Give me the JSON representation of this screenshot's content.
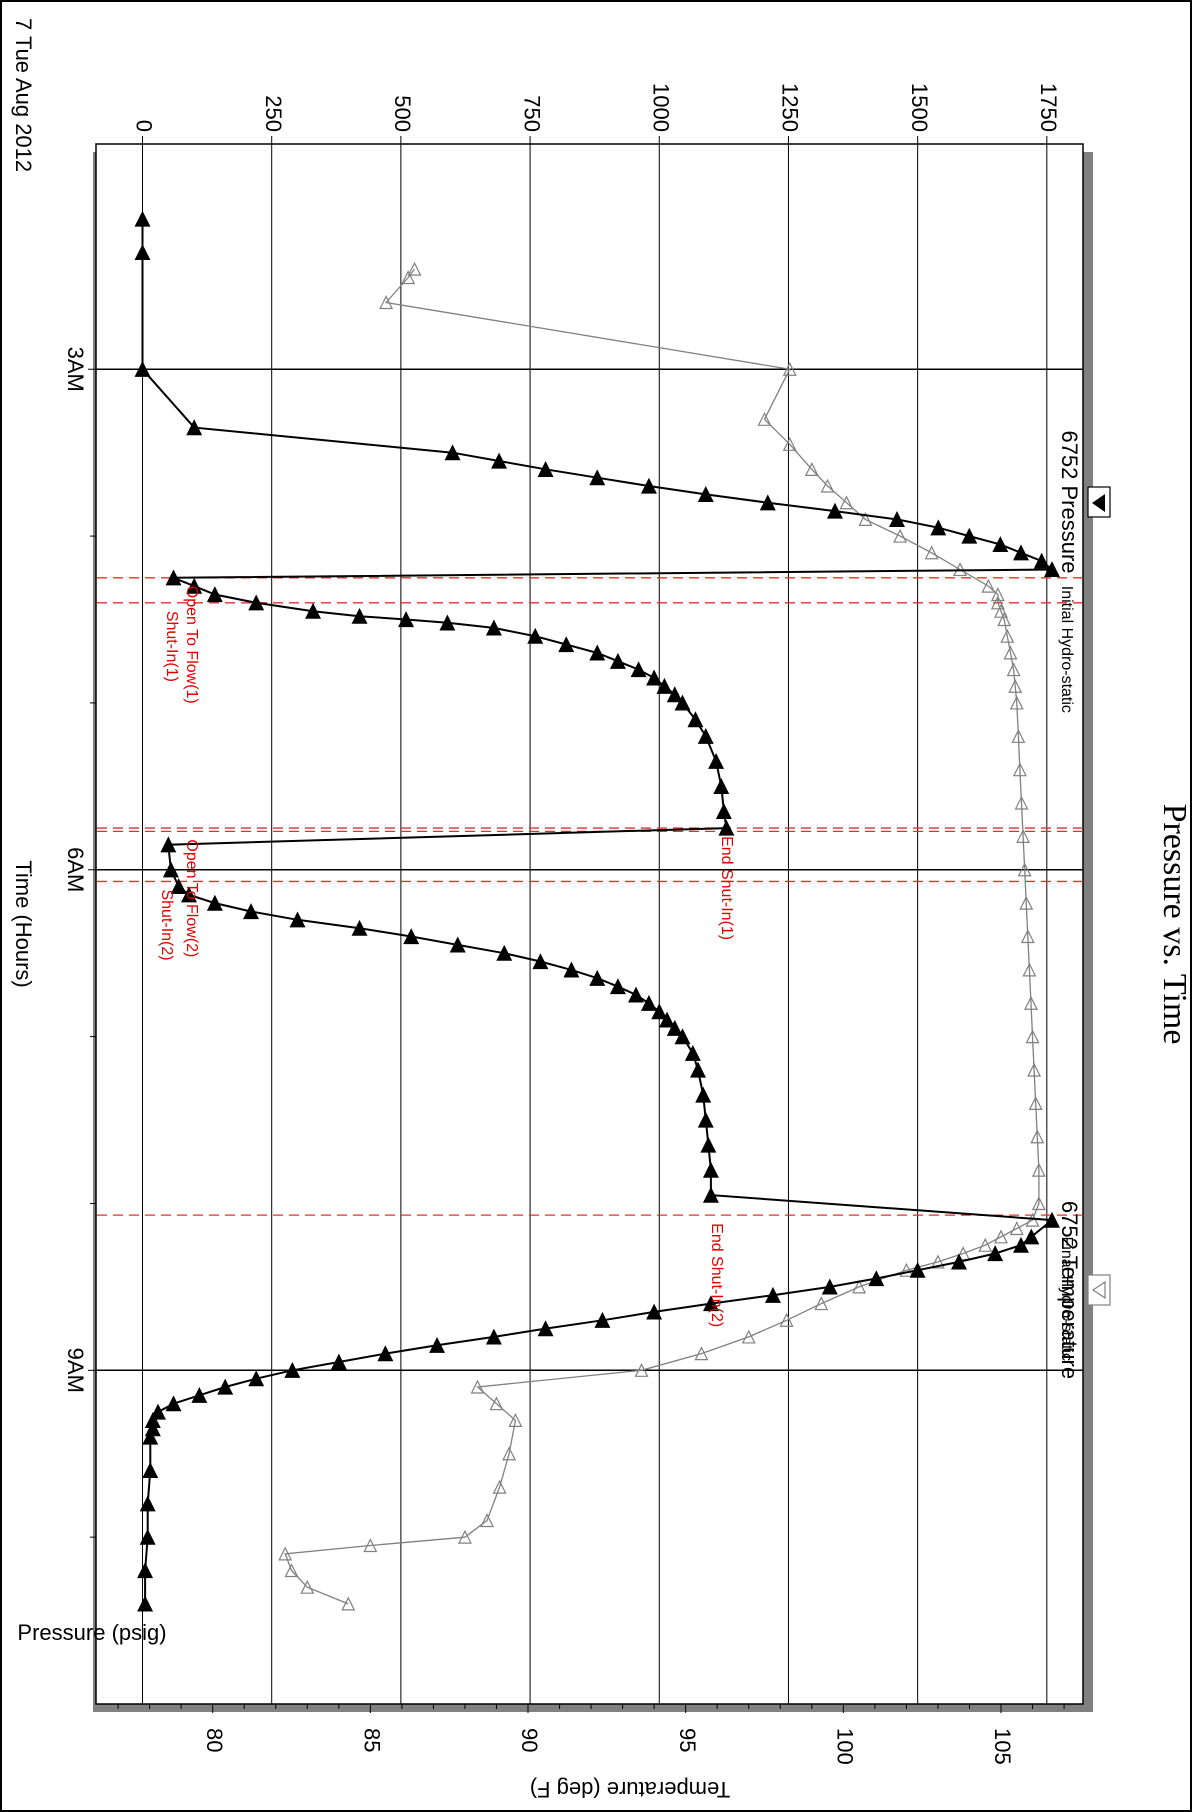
{
  "chart_data": {
    "type": "line",
    "title": "Pressure vs. Time",
    "date_label": "7 Tue Aug 2012",
    "x_axis": {
      "label": "Time (Hours)",
      "range": [
        1.65,
        11.0
      ],
      "major_ticks": [
        3,
        6,
        9
      ],
      "major_tick_labels": [
        "3AM",
        "6AM",
        "9AM"
      ],
      "minor_ticks": [
        4,
        5,
        7,
        8,
        10
      ]
    },
    "y_axis_left": {
      "label": "Pressure (psig)",
      "range": [
        -90,
        1820
      ],
      "ticks": [
        0,
        250,
        500,
        750,
        1000,
        1250,
        1500,
        1750
      ],
      "tick_labels": [
        "0",
        "250",
        "500",
        "750",
        "1000",
        "1250",
        "1500",
        "1750"
      ]
    },
    "y_axis_right": {
      "label": "Temperature (deg F)",
      "range": [
        76.3,
        107.6
      ],
      "ticks": [
        80,
        85,
        90,
        95,
        100,
        105
      ],
      "tick_labels": [
        "80",
        "85",
        "90",
        "95",
        "100",
        "105"
      ]
    },
    "grid": true,
    "legend_position": "top-right",
    "series": [
      {
        "name": "6752 Pressure",
        "axis": "left",
        "color": "#000000",
        "marker": "filled-triangle",
        "x": [
          2.1,
          2.3,
          3.0,
          3.35,
          3.5,
          3.55,
          3.6,
          3.65,
          3.7,
          3.75,
          3.8,
          3.85,
          3.9,
          3.95,
          4.0,
          4.05,
          4.1,
          4.15,
          4.2,
          4.25,
          4.3,
          4.35,
          4.4,
          4.45,
          4.48,
          4.5,
          4.52,
          4.55,
          4.6,
          4.65,
          4.7,
          4.75,
          4.8,
          4.85,
          4.9,
          4.95,
          5.0,
          5.1,
          5.2,
          5.35,
          5.5,
          5.65,
          5.75,
          5.85,
          6.0,
          6.1,
          6.15,
          6.2,
          6.25,
          6.3,
          6.35,
          6.4,
          6.45,
          6.5,
          6.55,
          6.6,
          6.65,
          6.7,
          6.75,
          6.8,
          6.85,
          6.9,
          6.95,
          7.0,
          7.1,
          7.2,
          7.35,
          7.5,
          7.65,
          7.8,
          7.95,
          8.1,
          8.2,
          8.25,
          8.3,
          8.35,
          8.4,
          8.45,
          8.5,
          8.55,
          8.6,
          8.65,
          8.7,
          8.75,
          8.8,
          8.85,
          8.9,
          8.95,
          9.0,
          9.05,
          9.1,
          9.15,
          9.2,
          9.25,
          9.3,
          9.35,
          9.4,
          9.6,
          9.8,
          10.0,
          10.2,
          10.4
        ],
        "y": [
          0,
          0,
          0,
          100,
          600,
          690,
          780,
          880,
          980,
          1090,
          1210,
          1340,
          1460,
          1540,
          1600,
          1660,
          1700,
          1740,
          1760,
          60,
          100,
          140,
          220,
          330,
          420,
          510,
          590,
          680,
          760,
          820,
          880,
          920,
          960,
          990,
          1010,
          1030,
          1045,
          1070,
          1090,
          1110,
          1120,
          1125,
          1130,
          50,
          55,
          70,
          90,
          140,
          210,
          300,
          420,
          520,
          610,
          700,
          770,
          830,
          880,
          920,
          955,
          980,
          1000,
          1015,
          1030,
          1045,
          1065,
          1075,
          1085,
          1090,
          1095,
          1100,
          1100,
          1760,
          1720,
          1700,
          1650,
          1580,
          1500,
          1420,
          1330,
          1220,
          1100,
          990,
          890,
          780,
          680,
          570,
          470,
          380,
          290,
          220,
          160,
          110,
          60,
          30,
          20,
          20,
          15,
          15,
          10,
          10,
          5,
          5
        ]
      },
      {
        "name": "6752 Temperature",
        "axis": "right",
        "color": "#808080",
        "marker": "open-triangle",
        "x": [
          2.4,
          2.45,
          2.6,
          3.0,
          3.3,
          3.45,
          3.6,
          3.7,
          3.8,
          3.9,
          4.0,
          4.1,
          4.2,
          4.3,
          4.35,
          4.4,
          4.45,
          4.5,
          4.6,
          4.7,
          4.8,
          4.9,
          5.0,
          5.2,
          5.4,
          5.6,
          5.8,
          6.0,
          6.2,
          6.4,
          6.6,
          6.8,
          7.0,
          7.2,
          7.4,
          7.6,
          7.8,
          8.0,
          8.1,
          8.15,
          8.2,
          8.25,
          8.3,
          8.35,
          8.4,
          8.5,
          8.6,
          8.7,
          8.8,
          8.9,
          9.0,
          9.1,
          9.2,
          9.3,
          9.5,
          9.7,
          9.9,
          10.0,
          10.05,
          10.1,
          10.2,
          10.3,
          10.4
        ],
        "y": [
          86.4,
          86.2,
          85.5,
          98.3,
          97.5,
          98.3,
          99.0,
          99.5,
          100.1,
          100.7,
          101.8,
          102.8,
          103.7,
          104.6,
          104.9,
          104.9,
          105.0,
          105.1,
          105.2,
          105.3,
          105.4,
          105.45,
          105.5,
          105.55,
          105.6,
          105.65,
          105.7,
          105.75,
          105.8,
          105.85,
          105.9,
          105.95,
          106.0,
          106.05,
          106.1,
          106.15,
          106.2,
          106.2,
          106.0,
          105.5,
          105.0,
          104.5,
          103.8,
          103.0,
          102.0,
          100.5,
          99.3,
          98.2,
          97.0,
          95.5,
          93.6,
          88.4,
          89.0,
          89.6,
          89.4,
          89.1,
          88.7,
          88.0,
          85.0,
          82.3,
          82.5,
          83.0,
          84.3
        ]
      }
    ],
    "annotations": [
      {
        "text": "Initial Hydro-static",
        "x": 4.25,
        "color": "#000000"
      },
      {
        "text": "Open To Flow(1)",
        "x": 4.25,
        "color": "#e00000"
      },
      {
        "text": "Shut-In(1)",
        "x": 4.4,
        "color": "#e00000"
      },
      {
        "text": "End Shut-In(1)",
        "x": 5.75,
        "color": "#e00000"
      },
      {
        "text": "Open To Flow(2)",
        "x": 5.77,
        "color": "#e00000"
      },
      {
        "text": "Shut-In(2)",
        "x": 6.07,
        "color": "#e00000"
      },
      {
        "text": "End Shut-In(2)",
        "x": 8.07,
        "color": "#e00000"
      },
      {
        "text": "Final Hydro-static",
        "x": 8.15,
        "color": "#000000"
      }
    ],
    "event_lines_x": [
      4.25,
      4.4,
      5.75,
      5.77,
      6.07,
      8.07
    ]
  }
}
